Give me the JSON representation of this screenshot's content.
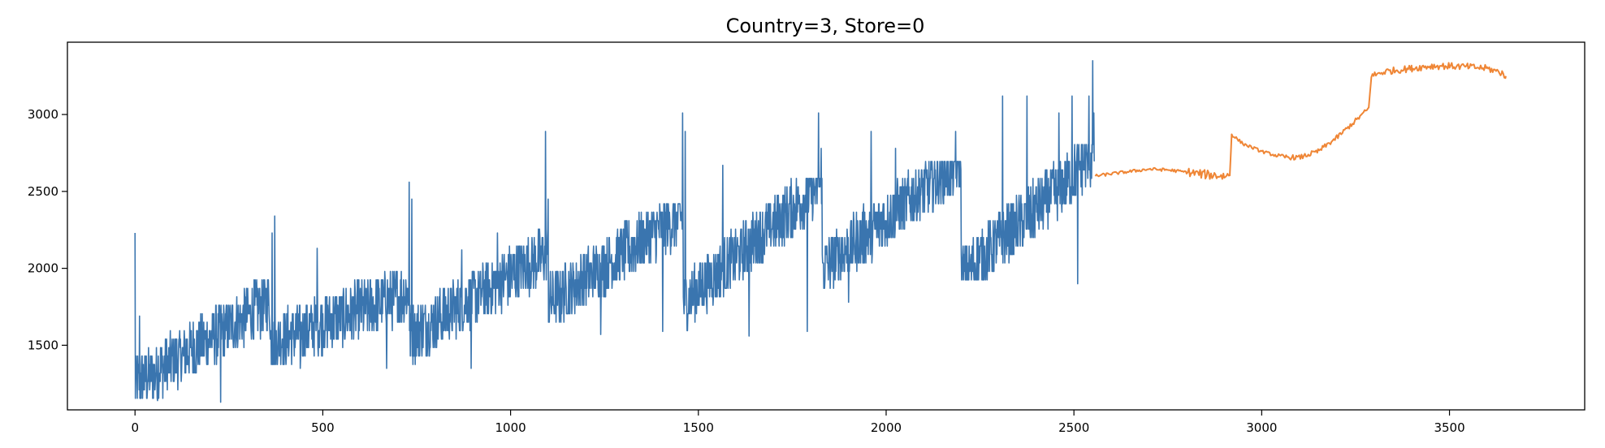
{
  "chart_data": {
    "type": "line",
    "title": "Country=3, Store=0",
    "xlabel": "",
    "ylabel": "",
    "xlim": [
      -180,
      3860
    ],
    "ylim": [
      1080,
      3470
    ],
    "xticks": [
      0,
      500,
      1000,
      1500,
      2000,
      2500,
      3000,
      3500
    ],
    "yticks": [
      1500,
      2000,
      2500,
      3000
    ],
    "grid": false,
    "colors": {
      "history": "#3a75af",
      "forecast": "#ef8636"
    },
    "series": [
      {
        "key": "history",
        "segments": [
          {
            "x": [
              0,
              360
            ],
            "base": [
              1250,
              1780
            ],
            "lo": 1150,
            "hi": 1900
          },
          {
            "x": [
              360,
              730
            ],
            "base": [
              1520,
              1840
            ],
            "lo": 1370,
            "hi": 2000
          },
          {
            "x": [
              730,
              1100
            ],
            "base": [
              1560,
              2100
            ],
            "lo": 1370,
            "hi": 2250
          },
          {
            "x": [
              1100,
              1460
            ],
            "base": [
              1780,
              2350
            ],
            "lo": 1570,
            "hi": 2400
          },
          {
            "x": [
              1460,
              1830
            ],
            "base": [
              1780,
              2560
            ],
            "lo": 1590,
            "hi": 2600
          },
          {
            "x": [
              1830,
              2200
            ],
            "base": [
              2000,
              2700
            ],
            "lo": 1810,
            "hi": 2700
          },
          {
            "x": [
              2200,
              2555
            ],
            "base": [
              1950,
              2730
            ],
            "lo": 1910,
            "hi": 2810
          }
        ],
        "spikes": [
          [
            0,
            2230
          ],
          [
            12,
            1690
          ],
          [
            365,
            2230
          ],
          [
            372,
            2340
          ],
          [
            485,
            2130
          ],
          [
            730,
            2560
          ],
          [
            737,
            2450
          ],
          [
            870,
            2120
          ],
          [
            965,
            2230
          ],
          [
            1093,
            2890
          ],
          [
            1100,
            2450
          ],
          [
            1458,
            3010
          ],
          [
            1465,
            2890
          ],
          [
            1565,
            2670
          ],
          [
            1820,
            3010
          ],
          [
            1827,
            2780
          ],
          [
            1960,
            2890
          ],
          [
            2025,
            2780
          ],
          [
            2185,
            2890
          ],
          [
            2310,
            3120
          ],
          [
            2375,
            3120
          ],
          [
            2460,
            3010
          ],
          [
            2495,
            3120
          ],
          [
            2540,
            3120
          ],
          [
            2550,
            3350
          ],
          [
            2553,
            3010
          ],
          [
            1635,
            1560
          ],
          [
            1790,
            1590
          ],
          [
            1900,
            1780
          ]
        ],
        "dips": [
          [
            60,
            1140
          ],
          [
            228,
            1130
          ],
          [
            440,
            1350
          ],
          [
            670,
            1350
          ],
          [
            895,
            1350
          ],
          [
            1240,
            1570
          ],
          [
            1405,
            1590
          ],
          [
            2510,
            1900
          ]
        ]
      },
      {
        "key": "forecast",
        "points": [
          [
            2557,
            2600
          ],
          [
            2600,
            2615
          ],
          [
            2650,
            2630
          ],
          [
            2700,
            2645
          ],
          [
            2750,
            2640
          ],
          [
            2800,
            2625
          ],
          [
            2850,
            2610
          ],
          [
            2900,
            2600
          ],
          [
            2915,
            2605
          ],
          [
            2920,
            2870
          ],
          [
            2950,
            2810
          ],
          [
            3000,
            2760
          ],
          [
            3050,
            2725
          ],
          [
            3100,
            2720
          ],
          [
            3150,
            2760
          ],
          [
            3200,
            2850
          ],
          [
            3250,
            2960
          ],
          [
            3285,
            3040
          ],
          [
            3292,
            3250
          ],
          [
            3330,
            3280
          ],
          [
            3400,
            3300
          ],
          [
            3450,
            3315
          ],
          [
            3500,
            3315
          ],
          [
            3550,
            3310
          ],
          [
            3600,
            3300
          ],
          [
            3640,
            3270
          ],
          [
            3650,
            3250
          ]
        ]
      }
    ]
  }
}
